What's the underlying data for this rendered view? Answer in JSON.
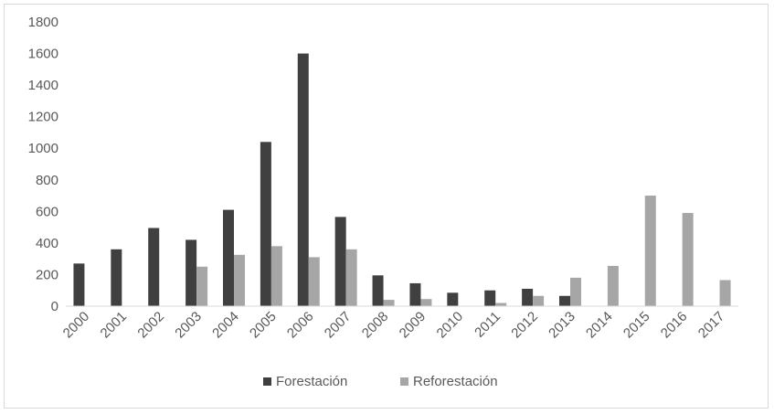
{
  "chart_data": {
    "type": "bar",
    "title": "",
    "xlabel": "",
    "ylabel": "",
    "categories": [
      "2000",
      "2001",
      "2002",
      "2003",
      "2004",
      "2005",
      "2006",
      "2007",
      "2008",
      "2009",
      "2010",
      "2011",
      "2012",
      "2013",
      "2014",
      "2015",
      "2016",
      "2017"
    ],
    "series": [
      {
        "name": "Forestación",
        "color": "#404040",
        "values": [
          270,
          360,
          495,
          420,
          610,
          1040,
          1600,
          565,
          195,
          145,
          85,
          100,
          110,
          65,
          0,
          0,
          0,
          0
        ]
      },
      {
        "name": "Reforestación",
        "color": "#a6a6a6",
        "values": [
          0,
          0,
          0,
          250,
          325,
          380,
          310,
          360,
          40,
          45,
          0,
          20,
          65,
          180,
          255,
          700,
          590,
          165
        ]
      }
    ],
    "ylim": [
      0,
      1800
    ],
    "yticks": [
      0,
      200,
      400,
      600,
      800,
      1000,
      1200,
      1400,
      1600,
      1800
    ],
    "grid": false,
    "legend": "bottom-center"
  }
}
